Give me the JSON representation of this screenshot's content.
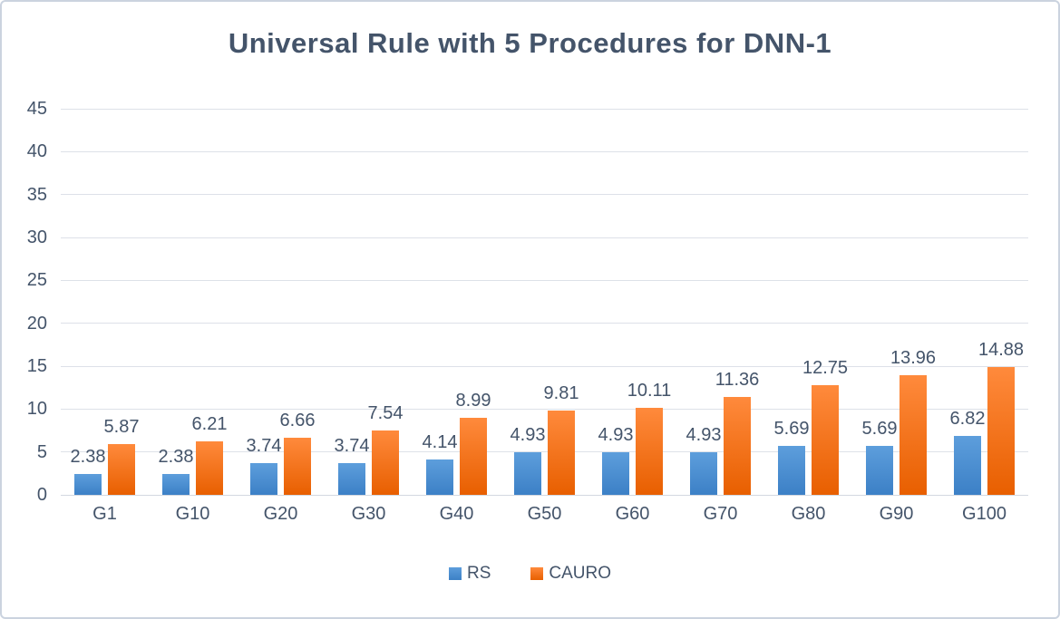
{
  "chart_data": {
    "type": "bar",
    "title": "Universal Rule with 5 Procedures for DNN-1",
    "categories": [
      "G1",
      "G10",
      "G20",
      "G30",
      "G40",
      "G50",
      "G60",
      "G70",
      "G80",
      "G90",
      "G100"
    ],
    "series": [
      {
        "name": "RS",
        "color": "#4d94d6",
        "gradient_top": "#5d9edc",
        "gradient_bottom": "#3c80c6",
        "values": [
          2.38,
          2.38,
          3.74,
          3.74,
          4.14,
          4.93,
          4.93,
          4.93,
          5.69,
          5.69,
          6.82
        ]
      },
      {
        "name": "CAURO",
        "color": "#f4650a",
        "gradient_top": "#ff8a3c",
        "gradient_bottom": "#e85f00",
        "values": [
          5.87,
          6.21,
          6.66,
          7.54,
          8.99,
          9.81,
          10.11,
          11.36,
          12.75,
          13.96,
          14.88
        ]
      }
    ],
    "value_label_decimals": 2,
    "y_axis": {
      "min": 0,
      "max": 45,
      "step": 5,
      "ticks": [
        45,
        40,
        35,
        30,
        25,
        20,
        15,
        10,
        5,
        0
      ]
    },
    "xlabel": "",
    "ylabel": "",
    "grid": true,
    "legend_position": "bottom",
    "text_color": "#44546a",
    "gridline_color": "#dde1e8",
    "frame_border_color": "#cbd3df"
  }
}
